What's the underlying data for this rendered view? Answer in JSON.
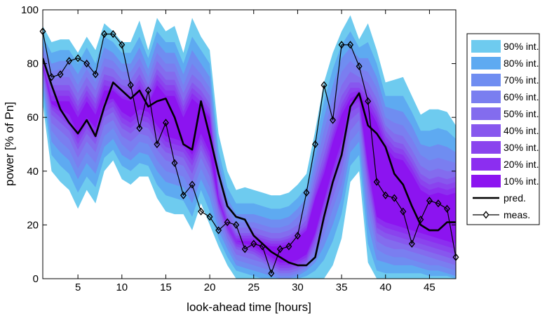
{
  "chart_data": {
    "type": "area",
    "title": "",
    "xlabel": "look-ahead time [hours]",
    "ylabel": "power [% of Pn]",
    "xlim": [
      1,
      48
    ],
    "ylim": [
      0,
      100
    ],
    "xticks": [
      5,
      10,
      15,
      20,
      25,
      30,
      35,
      40,
      45
    ],
    "yticks": [
      0,
      20,
      40,
      60,
      80,
      100
    ],
    "grid": false,
    "legend_position": "right",
    "x": [
      1,
      2,
      3,
      4,
      5,
      6,
      7,
      8,
      9,
      10,
      11,
      12,
      13,
      14,
      15,
      16,
      17,
      18,
      19,
      20,
      21,
      22,
      23,
      24,
      25,
      26,
      27,
      28,
      29,
      30,
      31,
      32,
      33,
      34,
      35,
      36,
      37,
      38,
      39,
      40,
      41,
      42,
      43,
      44,
      45,
      46,
      47,
      48
    ],
    "intervals": [
      {
        "name": "90% int.",
        "color": "#6ecbef",
        "upper": [
          94,
          88,
          89,
          89,
          84,
          90,
          85,
          95,
          92,
          88,
          88,
          96,
          85,
          97,
          92,
          94,
          84,
          97,
          90,
          85,
          54,
          40,
          33,
          34,
          33,
          32,
          31,
          31,
          32,
          35,
          39,
          55,
          73,
          84,
          92,
          98,
          89,
          95,
          85,
          73,
          74,
          75,
          68,
          61,
          63,
          63,
          62,
          57
        ],
        "lower": [
          65,
          40,
          36,
          33,
          26,
          33,
          28,
          40,
          44,
          37,
          35,
          38,
          38,
          30,
          25,
          24,
          24,
          18,
          28,
          20,
          12,
          5,
          0,
          0,
          0,
          0,
          0,
          0,
          0,
          0,
          0,
          0,
          0,
          5,
          15,
          36,
          40,
          6,
          0,
          0,
          0,
          0,
          0,
          0,
          0,
          0,
          0,
          0
        ]
      },
      {
        "name": "80% int.",
        "color": "#5eaaf1",
        "upper": [
          90,
          84,
          85,
          85,
          80,
          86,
          80,
          90,
          88,
          84,
          84,
          90,
          82,
          92,
          88,
          88,
          80,
          90,
          85,
          80,
          48,
          34,
          28,
          28,
          28,
          27,
          26,
          26,
          27,
          30,
          34,
          50,
          66,
          78,
          87,
          92,
          86,
          88,
          80,
          68,
          68,
          68,
          62,
          55,
          55,
          56,
          55,
          52
        ],
        "lower": [
          69,
          46,
          42,
          39,
          32,
          38,
          34,
          45,
          48,
          42,
          40,
          43,
          42,
          35,
          31,
          30,
          29,
          23,
          33,
          25,
          15,
          8,
          3,
          2,
          1,
          0,
          0,
          0,
          0,
          0,
          1,
          3,
          7,
          14,
          24,
          42,
          46,
          13,
          3,
          2,
          2,
          2,
          2,
          2,
          1,
          1,
          1,
          0
        ]
      },
      {
        "name": "70% int.",
        "color": "#6f8df1",
        "upper": [
          87,
          80,
          81,
          81,
          76,
          82,
          76,
          86,
          84,
          80,
          80,
          86,
          78,
          88,
          84,
          84,
          76,
          85,
          80,
          75,
          44,
          30,
          24,
          24,
          24,
          23,
          22,
          22,
          23,
          26,
          30,
          45,
          60,
          72,
          82,
          86,
          82,
          82,
          75,
          64,
          63,
          62,
          57,
          50,
          49,
          50,
          49,
          47
        ],
        "lower": [
          72,
          51,
          47,
          44,
          37,
          43,
          39,
          49,
          52,
          46,
          44,
          47,
          46,
          40,
          36,
          35,
          34,
          28,
          37,
          30,
          18,
          11,
          5,
          4,
          3,
          2,
          1,
          0,
          0,
          1,
          3,
          6,
          12,
          20,
          30,
          47,
          51,
          20,
          7,
          6,
          5,
          5,
          5,
          4,
          3,
          3,
          2,
          1
        ]
      },
      {
        "name": "60% int.",
        "color": "#7a7ef0",
        "upper": [
          85,
          77,
          78,
          78,
          72,
          78,
          73,
          82,
          81,
          77,
          77,
          82,
          75,
          84,
          80,
          80,
          72,
          80,
          76,
          71,
          40,
          27,
          21,
          21,
          21,
          20,
          19,
          19,
          20,
          23,
          27,
          41,
          55,
          67,
          77,
          81,
          78,
          77,
          71,
          60,
          58,
          57,
          52,
          46,
          44,
          45,
          44,
          43
        ],
        "lower": [
          74,
          55,
          51,
          48,
          41,
          47,
          43,
          53,
          56,
          50,
          47,
          51,
          50,
          44,
          40,
          39,
          38,
          32,
          41,
          34,
          21,
          13,
          7,
          6,
          5,
          4,
          3,
          1,
          1,
          2,
          4,
          9,
          16,
          26,
          35,
          51,
          55,
          26,
          11,
          9,
          8,
          8,
          7,
          6,
          5,
          5,
          4,
          3
        ]
      },
      {
        "name": "50% int.",
        "color": "#836cee",
        "upper": [
          83,
          74,
          75,
          75,
          69,
          75,
          70,
          79,
          78,
          74,
          74,
          79,
          72,
          81,
          77,
          77,
          69,
          76,
          73,
          68,
          37,
          25,
          19,
          19,
          19,
          18,
          17,
          17,
          18,
          20,
          24,
          38,
          50,
          62,
          72,
          77,
          75,
          73,
          67,
          57,
          54,
          53,
          48,
          42,
          40,
          41,
          40,
          40
        ],
        "lower": [
          76,
          58,
          55,
          52,
          45,
          51,
          47,
          57,
          59,
          53,
          51,
          54,
          53,
          48,
          44,
          43,
          42,
          36,
          45,
          38,
          24,
          15,
          9,
          8,
          7,
          6,
          4,
          2,
          2,
          3,
          5,
          11,
          20,
          30,
          40,
          55,
          59,
          31,
          14,
          12,
          11,
          11,
          10,
          9,
          8,
          7,
          6,
          5
        ]
      },
      {
        "name": "40% int.",
        "color": "#8757ee",
        "upper": [
          82,
          72,
          72,
          72,
          66,
          72,
          67,
          76,
          75,
          72,
          71,
          76,
          70,
          78,
          74,
          74,
          66,
          73,
          70,
          65,
          35,
          23,
          17,
          17,
          17,
          16,
          15,
          15,
          16,
          18,
          22,
          35,
          46,
          58,
          68,
          73,
          73,
          70,
          64,
          55,
          51,
          50,
          45,
          39,
          37,
          38,
          37,
          38
        ],
        "lower": [
          77,
          61,
          58,
          55,
          48,
          54,
          50,
          60,
          62,
          56,
          54,
          57,
          56,
          51,
          47,
          46,
          45,
          39,
          48,
          41,
          26,
          17,
          11,
          10,
          9,
          7,
          5,
          3,
          3,
          4,
          6,
          13,
          23,
          34,
          44,
          59,
          62,
          35,
          17,
          15,
          14,
          13,
          12,
          11,
          10,
          9,
          8,
          7
        ]
      },
      {
        "name": "30% int.",
        "color": "#8a43ee",
        "upper": [
          81,
          70,
          70,
          70,
          64,
          70,
          65,
          74,
          73,
          70,
          69,
          74,
          68,
          76,
          72,
          72,
          64,
          71,
          68,
          63,
          33,
          22,
          16,
          16,
          16,
          15,
          14,
          14,
          15,
          17,
          20,
          33,
          43,
          55,
          65,
          71,
          71,
          68,
          62,
          53,
          49,
          48,
          43,
          37,
          35,
          36,
          35,
          36
        ],
        "lower": [
          78,
          63,
          60,
          57,
          50,
          56,
          52,
          62,
          64,
          58,
          56,
          59,
          58,
          53,
          49,
          48,
          47,
          42,
          50,
          43,
          27,
          18,
          12,
          11,
          10,
          8,
          6,
          4,
          4,
          5,
          7,
          15,
          26,
          37,
          47,
          62,
          64,
          38,
          19,
          17,
          16,
          15,
          14,
          13,
          12,
          11,
          10,
          9
        ]
      },
      {
        "name": "20% int.",
        "color": "#8c2ef0",
        "upper": [
          80,
          68,
          68,
          68,
          62,
          68,
          63,
          72,
          71,
          68,
          67,
          72,
          66,
          74,
          70,
          70,
          62,
          69,
          66,
          61,
          31,
          21,
          15,
          15,
          15,
          14,
          13,
          13,
          14,
          16,
          19,
          31,
          41,
          53,
          63,
          69,
          70,
          66,
          60,
          51,
          47,
          46,
          41,
          35,
          33,
          34,
          33,
          34
        ],
        "lower": [
          79,
          64,
          62,
          59,
          52,
          58,
          54,
          64,
          66,
          60,
          58,
          61,
          60,
          55,
          51,
          50,
          49,
          44,
          52,
          45,
          28,
          19,
          13,
          12,
          11,
          9,
          7,
          5,
          5,
          6,
          8,
          16,
          28,
          39,
          49,
          64,
          66,
          40,
          21,
          19,
          18,
          17,
          16,
          15,
          14,
          13,
          12,
          11
        ]
      },
      {
        "name": "10% int.",
        "color": "#8c14f0",
        "upper": [
          80,
          66,
          66,
          66,
          60,
          66,
          61,
          70,
          70,
          67,
          66,
          70,
          65,
          72,
          68,
          68,
          60,
          67,
          64,
          60,
          30,
          20,
          14,
          14,
          14,
          13,
          12,
          12,
          13,
          15,
          18,
          30,
          39,
          51,
          61,
          67,
          69,
          64,
          58,
          49,
          45,
          44,
          39,
          33,
          31,
          32,
          31,
          32
        ],
        "lower": [
          79,
          65,
          63,
          61,
          54,
          60,
          56,
          66,
          67,
          62,
          60,
          63,
          62,
          57,
          53,
          52,
          51,
          46,
          54,
          47,
          29,
          20,
          14,
          13,
          12,
          10,
          8,
          6,
          6,
          7,
          9,
          17,
          29,
          41,
          51,
          66,
          67,
          42,
          23,
          21,
          20,
          19,
          18,
          17,
          16,
          15,
          14,
          13
        ]
      }
    ],
    "series": [
      {
        "name": "pred.",
        "style": "line",
        "color": "#000000",
        "values": [
          82,
          72,
          63,
          58,
          54,
          59,
          53,
          64,
          73,
          70,
          67,
          70,
          64,
          66,
          67,
          60,
          50,
          48,
          66,
          53,
          39,
          27,
          23,
          22,
          16,
          13,
          10,
          8,
          6,
          5,
          5,
          8,
          23,
          36,
          46,
          64,
          69,
          57,
          54,
          49,
          39,
          35,
          27,
          20,
          18,
          18,
          21,
          21
        ]
      },
      {
        "name": "meas.",
        "style": "line-marker",
        "marker": "diamond",
        "color": "#000000",
        "values": [
          92,
          75,
          76,
          81,
          82,
          80,
          76,
          91,
          91,
          87,
          72,
          56,
          70,
          50,
          58,
          43,
          31,
          35,
          25,
          23,
          18,
          21,
          20,
          11,
          13,
          12,
          2,
          11,
          12,
          16,
          32,
          50,
          72,
          59,
          87,
          87,
          79,
          66,
          36,
          31,
          30,
          25,
          13,
          22,
          29,
          28,
          26,
          8
        ]
      }
    ]
  }
}
